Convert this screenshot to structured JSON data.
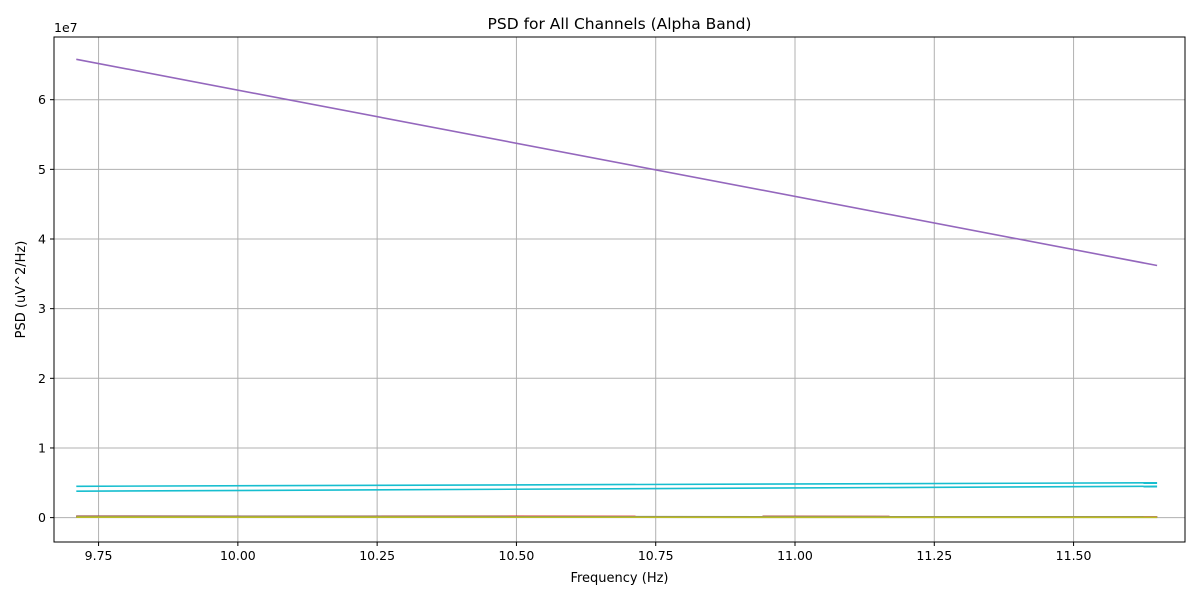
{
  "chart_data": {
    "type": "line",
    "title": "PSD for All Channels (Alpha Band)",
    "xlabel": "Frequency (Hz)",
    "ylabel": "PSD (uV^2/Hz)",
    "y_scale_exponent_label": "1e7",
    "y_multiplier": 10000000,
    "xlim": [
      9.67,
      11.7
    ],
    "ylim": [
      -3500000,
      69000000
    ],
    "x_ticks": [
      9.75,
      10.0,
      10.25,
      10.5,
      10.75,
      11.0,
      11.25,
      11.5
    ],
    "x_tick_labels": [
      "9.75",
      "10.00",
      "10.25",
      "10.50",
      "10.75",
      "11.00",
      "11.25",
      "11.50"
    ],
    "y_ticks": [
      0,
      10000000,
      20000000,
      30000000,
      40000000,
      50000000,
      60000000
    ],
    "y_tick_labels": [
      "0",
      "1",
      "2",
      "3",
      "4",
      "5",
      "6"
    ],
    "grid": true,
    "legend": "none",
    "x": [
      9.71,
      11.65
    ],
    "series": [
      {
        "color": "#1f77b4",
        "values": [
          100000,
          80000
        ]
      },
      {
        "color": "#ff7f0e",
        "values": [
          150000,
          120000
        ]
      },
      {
        "color": "#2ca02c",
        "values": [
          120000,
          100000
        ]
      },
      {
        "color": "#d62728",
        "values": [
          200000,
          150000
        ]
      },
      {
        "color": "#9467bd",
        "values": [
          65800000,
          36200000
        ]
      },
      {
        "color": "#8c564b",
        "values": [
          180000,
          130000
        ]
      },
      {
        "color": "#e377c2",
        "values": [
          90000,
          70000
        ]
      },
      {
        "color": "#7f7f7f",
        "values": [
          160000,
          110000
        ]
      },
      {
        "color": "#bcbd22",
        "values": [
          60000,
          50000
        ]
      },
      {
        "color": "#17becf",
        "values": [
          4500000,
          5000000
        ]
      },
      {
        "color": "#17becf",
        "values": [
          3800000,
          4500000
        ]
      }
    ]
  }
}
